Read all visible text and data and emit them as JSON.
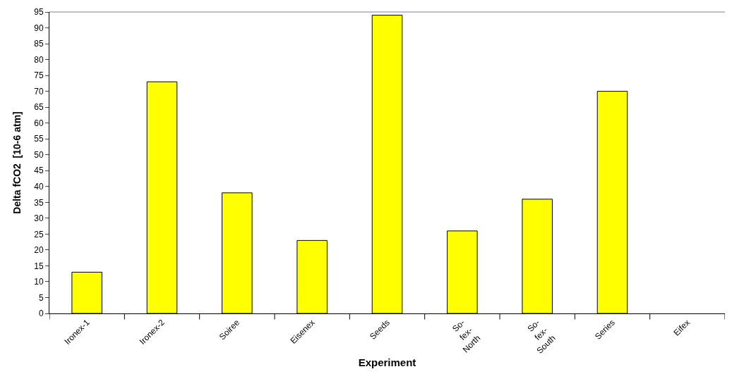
{
  "chart_data": {
    "type": "bar",
    "xlabel": "Experiment",
    "ylabel": "Delta fCO2  [10-6 atm]",
    "categories": [
      "Ironex-1",
      "Ironex-2",
      "Soiree",
      "Eisenex",
      "Seeds",
      "So-fex-North",
      "So-fex-South",
      "Series",
      "Eifex"
    ],
    "values": [
      13,
      73,
      38,
      23,
      94,
      26,
      36,
      70,
      null
    ],
    "color": "#ffff00",
    "ylim": [
      0,
      95
    ],
    "yticks": [
      0,
      5,
      10,
      15,
      20,
      25,
      30,
      35,
      40,
      45,
      50,
      55,
      60,
      65,
      70,
      75,
      80,
      85,
      90,
      95
    ],
    "legend": false
  }
}
